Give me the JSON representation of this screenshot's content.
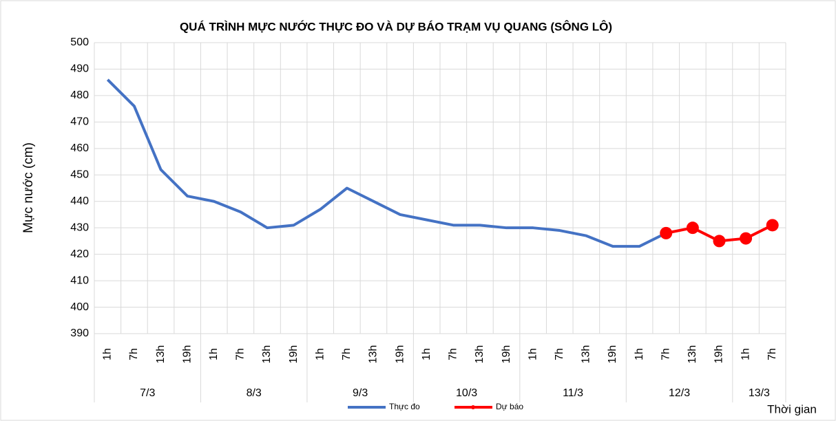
{
  "chart_data": {
    "type": "line",
    "title": "QUÁ TRÌNH MỰC NƯỚC THỰC ĐO VÀ DỰ BÁO TRẠM VỤ QUANG (SÔNG LÔ)",
    "y_label": "Mực nước (cm)",
    "x_label": "Thời gian",
    "groups": [
      {
        "label": "7/3",
        "categories": [
          "1h",
          "7h",
          "13h",
          "19h"
        ]
      },
      {
        "label": "8/3",
        "categories": [
          "1h",
          "7h",
          "13h",
          "19h"
        ]
      },
      {
        "label": "9/3",
        "categories": [
          "1h",
          "7h",
          "13h",
          "19h"
        ]
      },
      {
        "label": "10/3",
        "categories": [
          "1h",
          "7h",
          "13h",
          "19h"
        ]
      },
      {
        "label": "11/3",
        "categories": [
          "1h",
          "7h",
          "13h",
          "19h"
        ]
      },
      {
        "label": "12/3",
        "categories": [
          "1h",
          "7h",
          "13h",
          "19h"
        ]
      },
      {
        "label": "13/3",
        "categories": [
          "1h",
          "7h"
        ]
      }
    ],
    "series": [
      {
        "name": "Thực đo",
        "color": "#4472c4",
        "markers": false,
        "values": [
          486,
          476,
          452,
          442,
          440,
          436,
          430,
          431,
          437,
          445,
          440,
          435,
          433,
          431,
          431,
          430,
          430,
          429,
          427,
          423,
          423,
          428,
          null,
          null,
          null,
          null
        ]
      },
      {
        "name": "Dự báo",
        "color": "#ff0000",
        "markers": true,
        "values": [
          null,
          null,
          null,
          null,
          null,
          null,
          null,
          null,
          null,
          null,
          null,
          null,
          null,
          null,
          null,
          null,
          null,
          null,
          null,
          null,
          null,
          428,
          430,
          425,
          426,
          431
        ]
      }
    ],
    "ylim": [
      390,
      500
    ],
    "yticks": [
      390,
      400,
      410,
      420,
      430,
      440,
      450,
      460,
      470,
      480,
      490,
      500
    ],
    "grid": true,
    "legend": "bottom"
  }
}
